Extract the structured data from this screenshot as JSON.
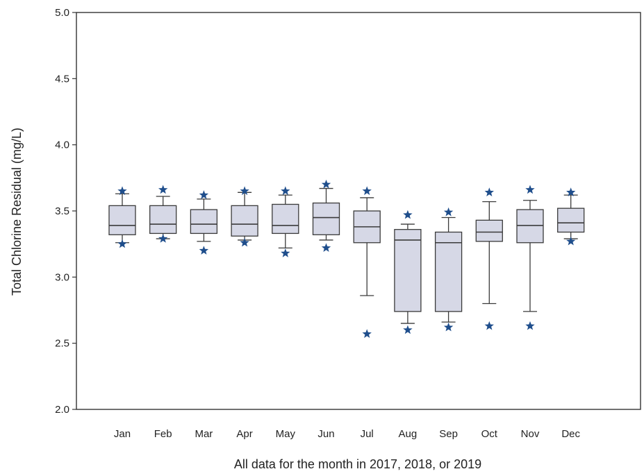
{
  "chart_data": {
    "type": "box",
    "xlabel": "All data for the month in 2017, 2018, or 2019",
    "ylabel": "Total Chlorine Residual (mg/L)",
    "ylim": [
      2.0,
      5.0
    ],
    "yticks": [
      "2.0",
      "2.5",
      "3.0",
      "3.5",
      "4.0",
      "4.5",
      "5.0"
    ],
    "categories": [
      "Jan",
      "Feb",
      "Mar",
      "Apr",
      "May",
      "Jun",
      "Jul",
      "Aug",
      "Sep",
      "Oct",
      "Nov",
      "Dec"
    ],
    "boxes": [
      {
        "whisker_low": 3.26,
        "q1": 3.32,
        "median": 3.39,
        "q3": 3.54,
        "whisker_high": 3.63,
        "outliers": [
          3.25,
          3.65
        ]
      },
      {
        "whisker_low": 3.29,
        "q1": 3.33,
        "median": 3.4,
        "q3": 3.54,
        "whisker_high": 3.61,
        "outliers": [
          3.29,
          3.66
        ]
      },
      {
        "whisker_low": 3.27,
        "q1": 3.33,
        "median": 3.4,
        "q3": 3.51,
        "whisker_high": 3.59,
        "outliers": [
          3.2,
          3.62
        ]
      },
      {
        "whisker_low": 3.28,
        "q1": 3.31,
        "median": 3.4,
        "q3": 3.54,
        "whisker_high": 3.64,
        "outliers": [
          3.26,
          3.65
        ]
      },
      {
        "whisker_low": 3.22,
        "q1": 3.33,
        "median": 3.39,
        "q3": 3.55,
        "whisker_high": 3.62,
        "outliers": [
          3.18,
          3.65
        ]
      },
      {
        "whisker_low": 3.28,
        "q1": 3.32,
        "median": 3.45,
        "q3": 3.56,
        "whisker_high": 3.67,
        "outliers": [
          3.22,
          3.7
        ]
      },
      {
        "whisker_low": 2.86,
        "q1": 3.26,
        "median": 3.38,
        "q3": 3.5,
        "whisker_high": 3.6,
        "outliers": [
          2.57,
          3.65
        ]
      },
      {
        "whisker_low": 2.65,
        "q1": 2.74,
        "median": 3.28,
        "q3": 3.36,
        "whisker_high": 3.4,
        "outliers": [
          2.6,
          3.47
        ]
      },
      {
        "whisker_low": 2.66,
        "q1": 2.74,
        "median": 3.26,
        "q3": 3.34,
        "whisker_high": 3.45,
        "outliers": [
          2.62,
          3.49
        ]
      },
      {
        "whisker_low": 2.8,
        "q1": 3.27,
        "median": 3.34,
        "q3": 3.43,
        "whisker_high": 3.57,
        "outliers": [
          2.63,
          3.64
        ]
      },
      {
        "whisker_low": 2.74,
        "q1": 3.26,
        "median": 3.39,
        "q3": 3.51,
        "whisker_high": 3.58,
        "outliers": [
          2.63,
          3.66
        ]
      },
      {
        "whisker_low": 3.29,
        "q1": 3.34,
        "median": 3.41,
        "q3": 3.52,
        "whisker_high": 3.62,
        "outliers": [
          3.27,
          3.64
        ]
      }
    ],
    "colors": {
      "box_fill": "#d6d8e6",
      "box_stroke": "#3a3a3a",
      "outlier": "#1f4e8c",
      "axis": "#333333"
    },
    "outlier_marker": "star"
  }
}
